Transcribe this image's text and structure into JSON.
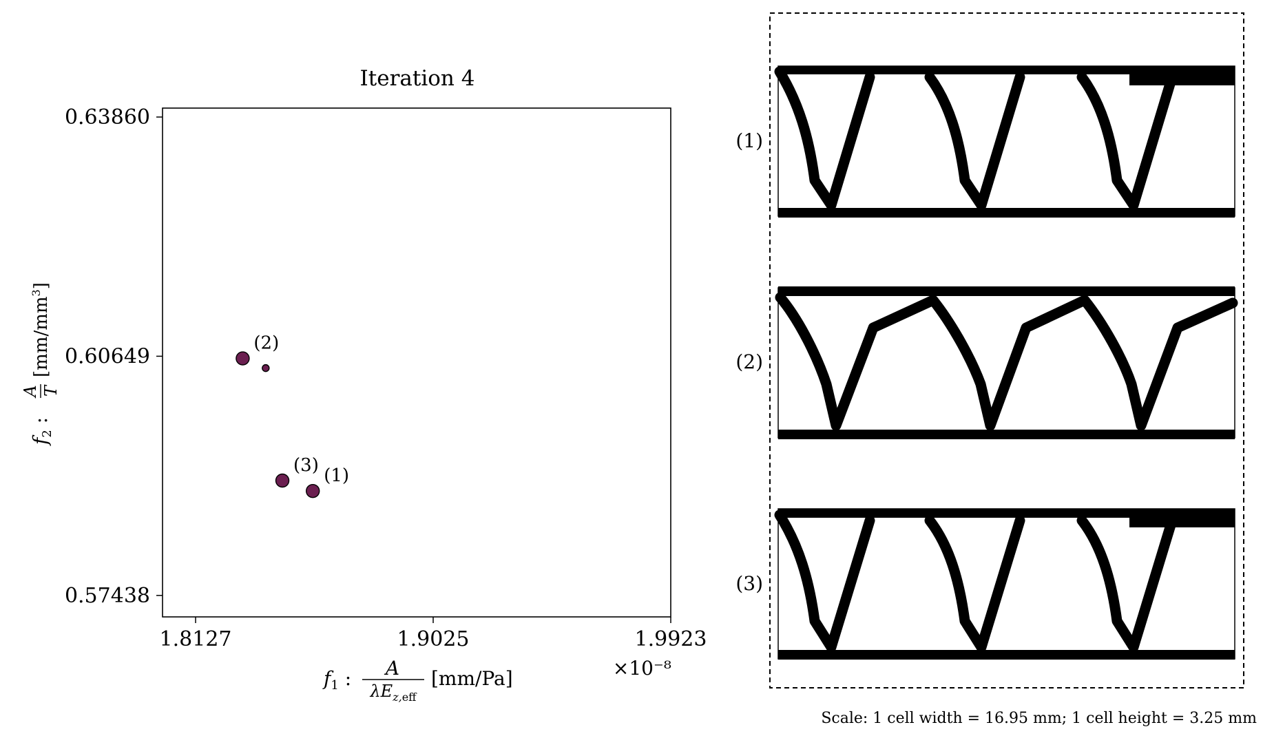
{
  "chart_data": [
    {
      "type": "scatter",
      "title": "Iteration 4",
      "xlabel": "f₁ : A / (λE_z,eff) [mm/Pa]",
      "ylabel": "f₂ : A / T [mm/mm³]",
      "x_multiplier": "×10⁻⁸",
      "xlim": [
        1.8002,
        1.9923
      ],
      "ylim": [
        0.5715,
        0.6398
      ],
      "xticks": [
        {
          "value": 1.8127,
          "label": "1.8127"
        },
        {
          "value": 1.9025,
          "label": "1.9025"
        },
        {
          "value": 1.9923,
          "label": "1.9923"
        }
      ],
      "yticks": [
        {
          "value": 0.6386,
          "label": "0.63860"
        },
        {
          "value": 0.60649,
          "label": "0.60649"
        },
        {
          "value": 0.57438,
          "label": "0.57438"
        }
      ],
      "grid": false,
      "marker_color": "#6b1f50",
      "points": [
        {
          "x": 1.8305,
          "y": 0.6062,
          "size": "large",
          "label": "(2)"
        },
        {
          "x": 1.8392,
          "y": 0.6049,
          "size": "small",
          "label": ""
        },
        {
          "x": 1.8455,
          "y": 0.5898,
          "size": "large",
          "label": "(3)"
        },
        {
          "x": 1.857,
          "y": 0.5884,
          "size": "large",
          "label": "(1)"
        }
      ]
    }
  ],
  "designs": {
    "labels": [
      "(1)",
      "(2)",
      "(3)"
    ],
    "scale_note": "Scale: 1 cell width = 16.95 mm; 1 cell height = 3.25 mm"
  }
}
